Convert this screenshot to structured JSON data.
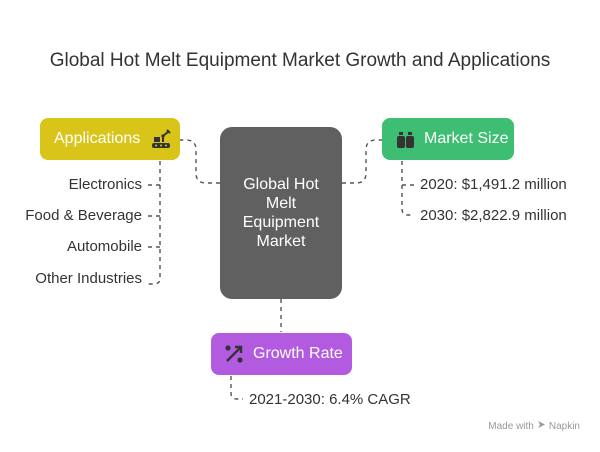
{
  "title": "Global Hot Melt Equipment Market Growth and Applications",
  "center": {
    "lines": [
      "Global Hot",
      "Melt",
      "Equipment",
      "Market"
    ],
    "color": "#606060"
  },
  "applications": {
    "label": "Applications",
    "icon": "conveyor-robot-icon",
    "color": "#D9C51A",
    "items": [
      "Electronics",
      "Food & Beverage",
      "Automobile",
      "Other Industries"
    ]
  },
  "market_size": {
    "label": "Market Size",
    "icon": "bag-icon",
    "color": "#3DBE73",
    "items": [
      "2020: $1,491.2 million",
      "2030: $2,822.9 million"
    ]
  },
  "growth_rate": {
    "label": "Growth Rate",
    "icon": "percent-arrow-icon",
    "color": "#B35BE0",
    "items": [
      "2021-2030: 6.4% CAGR"
    ]
  },
  "footer": {
    "text": "Made with",
    "brand": "Napkin"
  }
}
